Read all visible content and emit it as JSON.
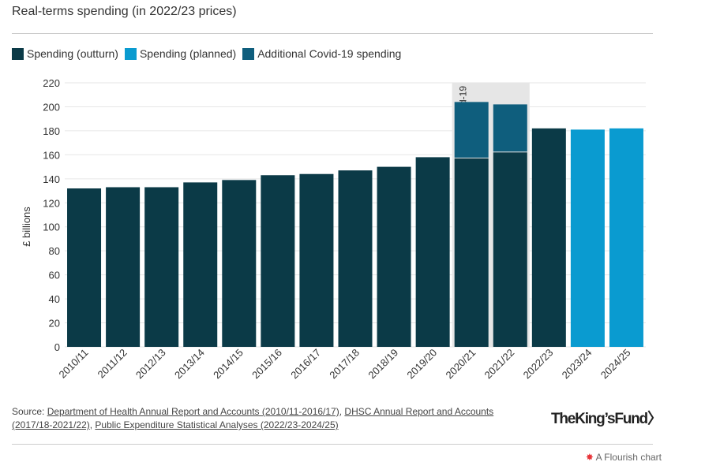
{
  "chart_data": {
    "type": "bar",
    "title": "Real-terms spending (in 2022/23 prices)",
    "ylabel": "£ billions",
    "ylim": [
      0,
      220
    ],
    "yticks": [
      0,
      20,
      40,
      60,
      80,
      100,
      120,
      140,
      160,
      180,
      200,
      220
    ],
    "grid": true,
    "legend_placement": "top-left",
    "categories": [
      "2010/11",
      "2011/12",
      "2012/13",
      "2013/14",
      "2014/15",
      "2015/16",
      "2016/17",
      "2017/18",
      "2018/19",
      "2019/20",
      "2020/21",
      "2021/22",
      "2022/23",
      "2023/24",
      "2024/25"
    ],
    "series": [
      {
        "name": "Spending (outturn)",
        "color": "#0b3a47",
        "values": [
          132,
          133,
          133,
          137,
          139,
          143,
          144,
          147,
          150,
          158,
          157,
          162,
          182,
          null,
          null
        ]
      },
      {
        "name": "Spending (planned)",
        "color": "#0a9bd0",
        "values": [
          null,
          null,
          null,
          null,
          null,
          null,
          null,
          null,
          null,
          null,
          null,
          null,
          null,
          181,
          182
        ]
      },
      {
        "name": "Additional Covid-19 spending",
        "color": "#0f5e7d",
        "values": [
          null,
          null,
          null,
          null,
          null,
          null,
          null,
          null,
          null,
          null,
          47,
          40,
          null,
          null,
          null
        ]
      }
    ],
    "annotation": {
      "label": "Covid-19",
      "categories": [
        "2020/21",
        "2021/22"
      ]
    }
  },
  "source": {
    "prefix": "Source: ",
    "links": [
      "Department of Health Annual Report and Accounts (2010/11-2016/17)",
      "DHSC Annual Report and Accounts (2017/18-2021/22)",
      "Public Expenditure Statistical Analyses (2022/23-2024/25)"
    ]
  },
  "logo": "TheKingsFund>",
  "flourish": "A Flourish chart"
}
